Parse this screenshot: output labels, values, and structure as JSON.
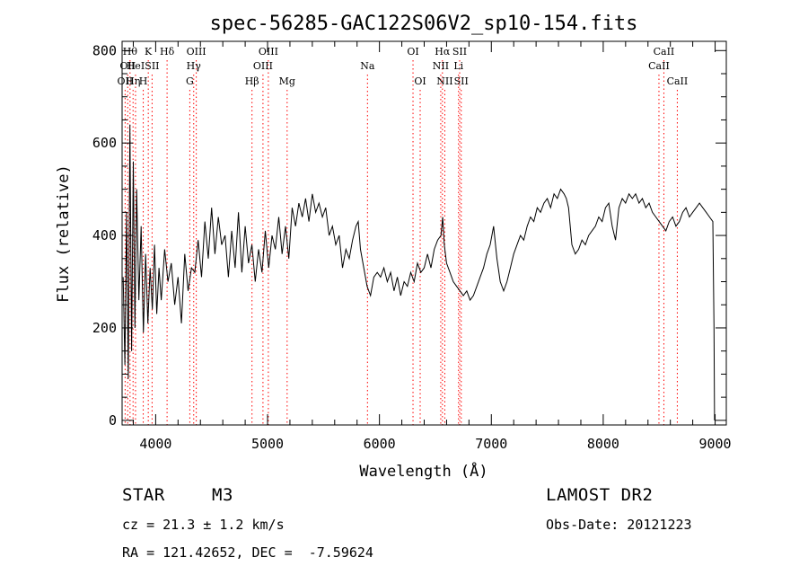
{
  "chart_data": {
    "type": "line",
    "title": "spec-56285-GAC122S06V2_sp10-154.fits",
    "xlabel": "Wavelength (Å)",
    "ylabel": "Flux (relative)",
    "xlim": [
      3700,
      9100
    ],
    "ylim": [
      -10,
      820
    ],
    "x_ticks": [
      4000,
      5000,
      6000,
      7000,
      8000,
      9000
    ],
    "x_tick_labels": [
      "4000",
      "5000",
      "6000",
      "7000",
      "8000",
      "9000"
    ],
    "y_ticks": [
      0,
      200,
      400,
      600,
      800
    ],
    "y_tick_labels": [
      "0",
      "200",
      "400",
      "600",
      "800"
    ],
    "x_minor_step": 200,
    "y_minor_step": 50,
    "grid": false,
    "line_color": "#000000",
    "line_marker_color": "#ff0000",
    "series": [
      {
        "x": [
          3710,
          3725,
          3740,
          3755,
          3770,
          3785,
          3800,
          3815,
          3830,
          3850,
          3870,
          3890,
          3910,
          3930,
          3950,
          3970,
          3990,
          4010,
          4030,
          4050,
          4080,
          4110,
          4140,
          4170,
          4200,
          4230,
          4260,
          4290,
          4320,
          4350,
          4380,
          4410,
          4440,
          4470,
          4500,
          4530,
          4560,
          4590,
          4620,
          4650,
          4680,
          4710,
          4740,
          4770,
          4800,
          4830,
          4860,
          4890,
          4920,
          4950,
          4980,
          5010,
          5040,
          5070,
          5100,
          5130,
          5160,
          5190,
          5220,
          5250,
          5280,
          5310,
          5340,
          5370,
          5400,
          5430,
          5460,
          5490,
          5520,
          5550,
          5580,
          5610,
          5640,
          5670,
          5700,
          5730,
          5760,
          5790,
          5810,
          5830,
          5860,
          5890,
          5920,
          5950,
          5980,
          6010,
          6040,
          6070,
          6100,
          6130,
          6160,
          6190,
          6220,
          6250,
          6280,
          6310,
          6340,
          6370,
          6400,
          6430,
          6460,
          6490,
          6520,
          6550,
          6565,
          6580,
          6600,
          6630,
          6660,
          6690,
          6720,
          6750,
          6780,
          6810,
          6840,
          6870,
          6900,
          6930,
          6960,
          6990,
          7020,
          7050,
          7080,
          7110,
          7140,
          7170,
          7200,
          7230,
          7260,
          7290,
          7320,
          7350,
          7380,
          7410,
          7440,
          7470,
          7500,
          7530,
          7560,
          7590,
          7620,
          7650,
          7670,
          7690,
          7720,
          7750,
          7780,
          7810,
          7840,
          7870,
          7900,
          7930,
          7960,
          7990,
          8020,
          8050,
          8080,
          8110,
          8140,
          8170,
          8200,
          8230,
          8260,
          8290,
          8320,
          8350,
          8380,
          8410,
          8440,
          8470,
          8500,
          8530,
          8560,
          8590,
          8620,
          8650,
          8680,
          8710,
          8740,
          8770,
          8800,
          8830,
          8860,
          8890,
          8920,
          8950,
          8980,
          8990,
          8995
        ],
        "y": [
          310,
          120,
          450,
          90,
          640,
          150,
          560,
          200,
          500,
          260,
          420,
          190,
          360,
          210,
          330,
          240,
          380,
          230,
          330,
          260,
          370,
          300,
          340,
          250,
          310,
          210,
          360,
          280,
          330,
          320,
          390,
          310,
          430,
          350,
          460,
          360,
          440,
          380,
          400,
          310,
          410,
          330,
          450,
          320,
          420,
          340,
          380,
          300,
          370,
          320,
          410,
          330,
          400,
          370,
          440,
          360,
          420,
          350,
          460,
          420,
          470,
          440,
          480,
          430,
          490,
          450,
          470,
          440,
          460,
          400,
          420,
          380,
          400,
          330,
          370,
          350,
          390,
          420,
          430,
          370,
          330,
          290,
          270,
          310,
          320,
          310,
          330,
          300,
          320,
          280,
          310,
          270,
          300,
          290,
          320,
          300,
          340,
          320,
          330,
          360,
          330,
          370,
          390,
          400,
          440,
          380,
          340,
          320,
          300,
          290,
          280,
          270,
          280,
          260,
          270,
          290,
          310,
          330,
          360,
          380,
          420,
          350,
          300,
          280,
          300,
          330,
          360,
          380,
          400,
          390,
          420,
          440,
          430,
          460,
          450,
          470,
          480,
          460,
          490,
          480,
          500,
          490,
          480,
          460,
          380,
          360,
          370,
          390,
          380,
          400,
          410,
          420,
          440,
          430,
          460,
          470,
          420,
          390,
          460,
          480,
          470,
          490,
          480,
          490,
          470,
          480,
          460,
          470,
          450,
          440,
          430,
          420,
          410,
          430,
          440,
          420,
          430,
          450,
          460,
          440,
          450,
          460,
          470,
          460,
          450,
          440,
          430,
          200,
          0
        ]
      }
    ],
    "lines": [
      {
        "x": 3727,
        "label": "OII",
        "row": 2
      },
      {
        "x": 3750,
        "label": "OII",
        "row": 1
      },
      {
        "x": 3771,
        "label": "Hθ",
        "row": 0
      },
      {
        "x": 3798,
        "label": "Hη",
        "row": 2
      },
      {
        "x": 3820,
        "label": "HeI",
        "row": 1
      },
      {
        "x": 3889,
        "label": "H",
        "row": 2
      },
      {
        "x": 3934,
        "label": "K",
        "row": 0
      },
      {
        "x": 3968,
        "label": "SII",
        "row": 1
      },
      {
        "x": 4102,
        "label": "Hδ",
        "row": 0
      },
      {
        "x": 4305,
        "label": "G",
        "row": 2
      },
      {
        "x": 4340,
        "label": "Hγ",
        "row": 1
      },
      {
        "x": 4363,
        "label": "OIII",
        "row": 0
      },
      {
        "x": 4861,
        "label": "Hβ",
        "row": 2
      },
      {
        "x": 4959,
        "label": "OIII",
        "row": 1
      },
      {
        "x": 5007,
        "label": "OIII",
        "row": 0
      },
      {
        "x": 5175,
        "label": "Mg",
        "row": 2
      },
      {
        "x": 5893,
        "label": "Na",
        "row": 1
      },
      {
        "x": 6300,
        "label": "OI",
        "row": 0
      },
      {
        "x": 6364,
        "label": "OI",
        "row": 2
      },
      {
        "x": 6548,
        "label": "NII",
        "row": 1
      },
      {
        "x": 6563,
        "label": "Hα",
        "row": 0
      },
      {
        "x": 6584,
        "label": "NII",
        "row": 2
      },
      {
        "x": 6707,
        "label": "Li",
        "row": 1
      },
      {
        "x": 6717,
        "label": "SII",
        "row": 0
      },
      {
        "x": 6731,
        "label": "SII",
        "row": 2
      },
      {
        "x": 8498,
        "label": "CaII",
        "row": 1
      },
      {
        "x": 8542,
        "label": "CaII",
        "row": 0
      },
      {
        "x": 8662,
        "label": "CaII",
        "row": 2
      }
    ]
  },
  "info": {
    "class_label": "STAR",
    "subclass": "M3",
    "survey": "LAMOST DR2",
    "redshift": "cz = 21.3 ± 1.2 km/s",
    "obs_date": "Obs-Date: 20121223",
    "coordinates": "RA = 121.42652, DEC =  -7.59624"
  }
}
